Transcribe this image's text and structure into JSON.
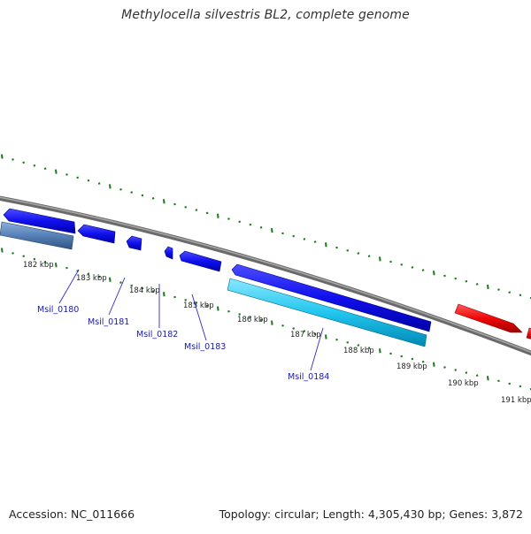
{
  "title": "Methylocella silvestris BL2, complete genome",
  "footer": {
    "accession": "Accession: NC_011666",
    "summary": "Topology: circular; Length: 4,305,430 bp; Genes: 3,872"
  },
  "colors": {
    "backbone": "#8a8a8a",
    "tick": "#1a7a1a",
    "ruler_text": "#222222",
    "gene_label": "#1a1aa8",
    "gene_label_line": "#2b2bcc"
  },
  "ruler": {
    "labels": [
      "182 kbp",
      "183 kbp",
      "184 kbp",
      "185 kbp",
      "186 kbp",
      "187 kbp",
      "188 kbp",
      "189 kbp",
      "190 kbp",
      "191 kbp"
    ]
  },
  "gene_labels": [
    "Msil_0180",
    "Msil_0181",
    "Msil_0182",
    "Msil_0183",
    "Msil_0184"
  ]
}
